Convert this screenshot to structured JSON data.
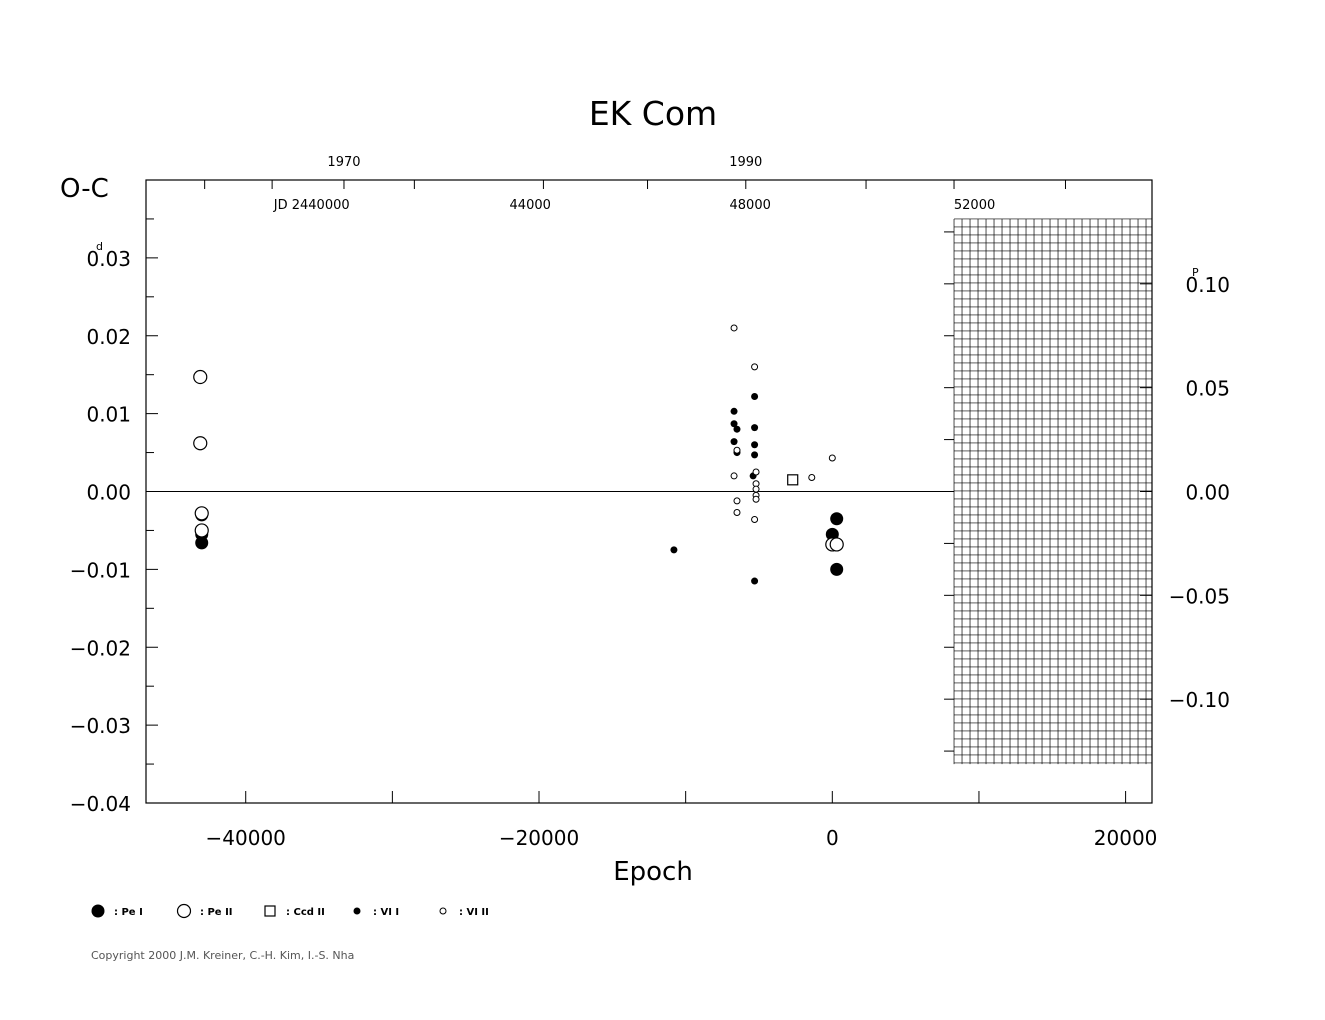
{
  "chart_data": {
    "type": "scatter",
    "title": "EK  Com",
    "xlabel": "Epoch",
    "ylabel": "O-C",
    "y_unit_superscript": "d",
    "right_unit_superscript": "P",
    "xlim": [
      -46800,
      21800
    ],
    "ylim": [
      -0.04,
      0.04
    ],
    "x_ticks": [
      -40000,
      -20000,
      0,
      20000
    ],
    "x_tick_labels": [
      "−40000",
      "−20000",
      "0",
      "20000"
    ],
    "x_minor_ticks": [
      -40000,
      -30000,
      -20000,
      -10000,
      0,
      10000,
      20000
    ],
    "y_ticks": [
      0.03,
      0.02,
      0.01,
      0.0,
      -0.01,
      -0.02,
      -0.03,
      -0.04
    ],
    "y_tick_labels": [
      "0.03",
      "0.02",
      "0.01",
      "0.00",
      "−0.01",
      "−0.02",
      "−0.03",
      "−0.04"
    ],
    "right_ticks": [
      0.1,
      0.05,
      0.0,
      -0.05,
      -0.1
    ],
    "right_tick_labels": [
      "0.10",
      "0.05",
      "0.00",
      "−0.05",
      "−0.10"
    ],
    "right_scale_factor": 3.75,
    "top_year_ticks": [
      {
        "label": "1970",
        "epoch": -33300
      },
      {
        "label": "1990",
        "epoch": -5900
      }
    ],
    "top_year_minor_ticks": [
      -42800,
      -38200,
      -33300,
      -28500,
      -19700,
      -12600,
      -5900,
      2300,
      8300,
      15900
    ],
    "jd_ticks": [
      {
        "label": "JD  2440000",
        "epoch": -35500
      },
      {
        "label": "44000",
        "epoch": -20600
      },
      {
        "label": "48000",
        "epoch": -5600
      },
      {
        "label": "52000",
        "epoch": 9700
      }
    ],
    "grid_region": {
      "x_from": 8300,
      "x_to": 21800,
      "y_from": -0.035,
      "y_to": 0.035
    },
    "zero_line": true,
    "series": [
      {
        "name": ": Pe  I",
        "marker": "filled-large",
        "points": [
          [
            -43000,
            -0.003
          ],
          [
            -43000,
            -0.0055
          ],
          [
            -43000,
            -0.0066
          ],
          [
            0,
            -0.0055
          ],
          [
            300,
            -0.0035
          ],
          [
            300,
            -0.01
          ]
        ]
      },
      {
        "name": ": Pe  II",
        "marker": "open-large",
        "points": [
          [
            -43100,
            0.0147
          ],
          [
            -43100,
            0.0062
          ],
          [
            -43000,
            -0.0028
          ],
          [
            -43000,
            -0.005
          ],
          [
            0,
            -0.0068
          ],
          [
            300,
            -0.0068
          ]
        ]
      },
      {
        "name": ": Ccd  II",
        "marker": "open-square",
        "points": [
          [
            -2700,
            0.0015
          ]
        ]
      },
      {
        "name": ": VI  I",
        "marker": "filled-small",
        "points": [
          [
            -10800,
            -0.0075
          ],
          [
            -6700,
            0.0103
          ],
          [
            -6700,
            0.0087
          ],
          [
            -6500,
            0.008
          ],
          [
            -6700,
            0.0064
          ],
          [
            -6500,
            0.005
          ],
          [
            -5300,
            0.0122
          ],
          [
            -5300,
            0.0082
          ],
          [
            -5300,
            0.006
          ],
          [
            -5300,
            0.0047
          ],
          [
            -5400,
            0.002
          ],
          [
            -5300,
            -0.0115
          ]
        ]
      },
      {
        "name": ": VI  II",
        "marker": "open-small",
        "points": [
          [
            -6700,
            0.021
          ],
          [
            -5300,
            0.016
          ],
          [
            -6500,
            0.0053
          ],
          [
            -6700,
            0.002
          ],
          [
            -5200,
            0.0025
          ],
          [
            -5200,
            0.001
          ],
          [
            -5200,
            0.0003
          ],
          [
            -5200,
            -0.0005
          ],
          [
            -5200,
            -0.001
          ],
          [
            -6500,
            -0.0012
          ],
          [
            -6500,
            -0.0027
          ],
          [
            -5300,
            -0.0036
          ],
          [
            -1400,
            0.0018
          ],
          [
            0,
            0.0043
          ]
        ]
      }
    ]
  },
  "copyright": "Copyright 2000 J.M. Kreiner, C.-H. Kim, I.-S. Nha"
}
